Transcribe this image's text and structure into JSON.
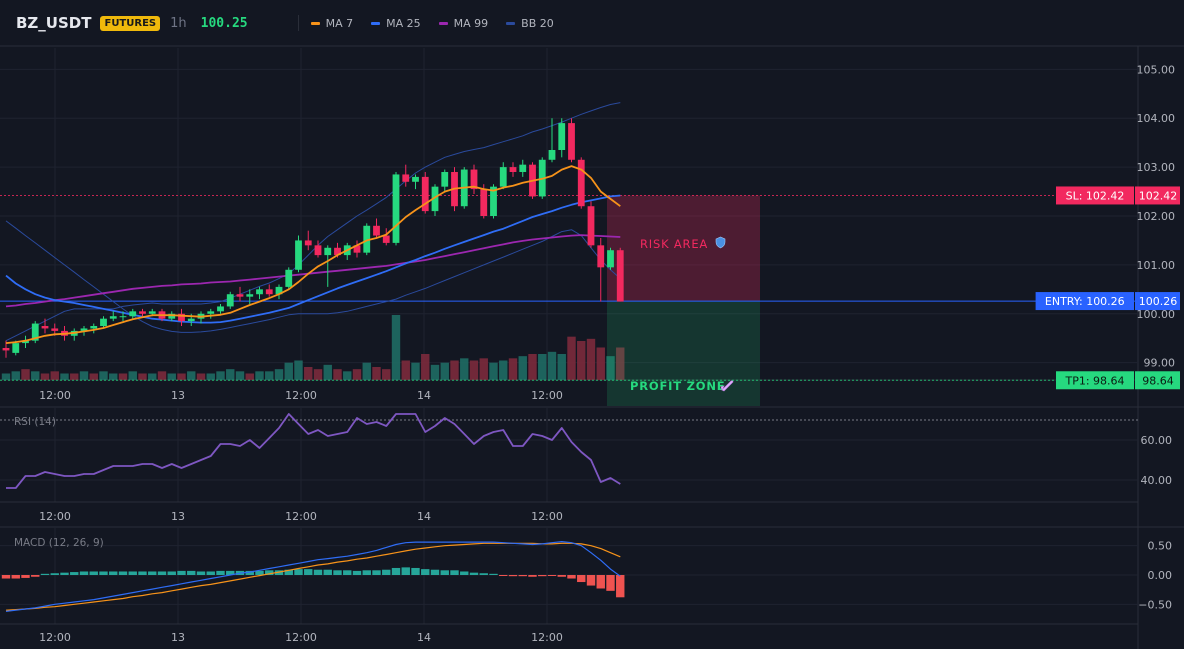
{
  "header": {
    "symbol": "BZ_USDT",
    "badge": "FUTURES",
    "interval": "1h",
    "last_price": "100.25",
    "legend": [
      {
        "label": "MA 7",
        "color": "#f7931a"
      },
      {
        "label": "MA 25",
        "color": "#2f6df6"
      },
      {
        "label": "MA 99",
        "color": "#9c27b0"
      },
      {
        "label": "BB 20",
        "color": "#2a4a9c"
      }
    ]
  },
  "chart_data": [
    {
      "type": "candlestick",
      "name": "price",
      "ylim": [
        98.4,
        105.6
      ],
      "yticks": [
        99,
        100,
        101,
        102,
        103,
        104,
        105
      ],
      "xtick_labels": [
        "12:00",
        "13",
        "12:00",
        "14",
        "12:00"
      ],
      "annotations": {
        "stop_loss": {
          "label": "SL: 102.42",
          "value": 102.42,
          "color": "#f2295f"
        },
        "entry": {
          "label": "ENTRY: 100.26",
          "value": 100.26,
          "color": "#2962ff"
        },
        "take_profit": {
          "label": "TP1: 98.64",
          "value": 98.64,
          "color": "#26d97f"
        },
        "risk_area_label": "RISK AREA",
        "profit_zone_label": "PROFIT ZONE"
      },
      "ohlc": [
        [
          99.3,
          99.45,
          99.1,
          99.25
        ],
        [
          99.2,
          99.45,
          99.15,
          99.4
        ],
        [
          99.4,
          99.55,
          99.3,
          99.45
        ],
        [
          99.45,
          99.85,
          99.4,
          99.8
        ],
        [
          99.75,
          99.9,
          99.6,
          99.7
        ],
        [
          99.7,
          99.8,
          99.55,
          99.65
        ],
        [
          99.65,
          99.75,
          99.45,
          99.55
        ],
        [
          99.55,
          99.7,
          99.45,
          99.65
        ],
        [
          99.65,
          99.75,
          99.55,
          99.7
        ],
        [
          99.7,
          99.8,
          99.6,
          99.75
        ],
        [
          99.75,
          99.95,
          99.7,
          99.9
        ],
        [
          99.9,
          100.05,
          99.85,
          99.95
        ],
        [
          99.95,
          100.05,
          99.85,
          99.95
        ],
        [
          99.95,
          100.1,
          99.9,
          100.05
        ],
        [
          100.05,
          100.1,
          99.95,
          100.0
        ],
        [
          100.0,
          100.1,
          99.95,
          100.05
        ],
        [
          100.05,
          100.1,
          99.85,
          99.9
        ],
        [
          99.9,
          100.05,
          99.85,
          100.0
        ],
        [
          100.0,
          100.1,
          99.75,
          99.85
        ],
        [
          99.85,
          100.0,
          99.75,
          99.9
        ],
        [
          99.9,
          100.05,
          99.8,
          100.0
        ],
        [
          100.0,
          100.1,
          99.9,
          100.05
        ],
        [
          100.05,
          100.2,
          100.0,
          100.15
        ],
        [
          100.15,
          100.45,
          100.1,
          100.4
        ],
        [
          100.4,
          100.55,
          100.25,
          100.35
        ],
        [
          100.35,
          100.5,
          100.2,
          100.4
        ],
        [
          100.4,
          100.55,
          100.3,
          100.5
        ],
        [
          100.5,
          100.6,
          100.35,
          100.4
        ],
        [
          100.4,
          100.6,
          100.3,
          100.55
        ],
        [
          100.55,
          100.95,
          100.5,
          100.9
        ],
        [
          100.9,
          101.6,
          100.85,
          101.5
        ],
        [
          101.5,
          101.7,
          101.3,
          101.4
        ],
        [
          101.4,
          101.5,
          101.15,
          101.2
        ],
        [
          101.2,
          101.4,
          100.55,
          101.35
        ],
        [
          101.35,
          101.45,
          101.15,
          101.2
        ],
        [
          101.2,
          101.45,
          101.1,
          101.4
        ],
        [
          101.4,
          101.5,
          101.15,
          101.25
        ],
        [
          101.25,
          101.85,
          101.2,
          101.8
        ],
        [
          101.8,
          101.95,
          101.55,
          101.6
        ],
        [
          101.6,
          101.75,
          101.4,
          101.45
        ],
        [
          101.45,
          102.9,
          101.4,
          102.85
        ],
        [
          102.85,
          103.05,
          102.6,
          102.7
        ],
        [
          102.7,
          102.85,
          102.55,
          102.8
        ],
        [
          102.8,
          102.9,
          102.05,
          102.1
        ],
        [
          102.1,
          102.65,
          102.0,
          102.6
        ],
        [
          102.6,
          102.95,
          102.5,
          102.9
        ],
        [
          102.9,
          103.0,
          102.1,
          102.2
        ],
        [
          102.2,
          103.0,
          102.15,
          102.95
        ],
        [
          102.95,
          103.05,
          102.45,
          102.55
        ],
        [
          102.55,
          102.65,
          101.95,
          102.0
        ],
        [
          102.0,
          102.65,
          101.95,
          102.6
        ],
        [
          102.6,
          103.1,
          102.55,
          103.0
        ],
        [
          103.0,
          103.1,
          102.8,
          102.9
        ],
        [
          102.9,
          103.15,
          102.8,
          103.05
        ],
        [
          103.05,
          103.1,
          102.35,
          102.4
        ],
        [
          102.4,
          103.2,
          102.35,
          103.15
        ],
        [
          103.15,
          104.0,
          103.1,
          103.35
        ],
        [
          103.35,
          104.0,
          103.2,
          103.9
        ],
        [
          103.9,
          104.0,
          103.1,
          103.15
        ],
        [
          103.15,
          103.2,
          102.15,
          102.2
        ],
        [
          102.2,
          102.3,
          101.35,
          101.4
        ],
        [
          101.4,
          101.55,
          100.25,
          100.95
        ],
        [
          100.95,
          101.35,
          100.9,
          101.3
        ],
        [
          101.3,
          101.35,
          100.25,
          100.25
        ]
      ],
      "ma7": [
        99.4,
        99.42,
        99.45,
        99.5,
        99.55,
        99.58,
        99.59,
        99.61,
        99.64,
        99.67,
        99.71,
        99.77,
        99.83,
        99.89,
        99.93,
        99.97,
        99.97,
        99.97,
        99.96,
        99.95,
        99.94,
        99.96,
        99.98,
        100.02,
        100.1,
        100.18,
        100.25,
        100.32,
        100.4,
        100.5,
        100.65,
        100.82,
        100.97,
        101.08,
        101.2,
        101.3,
        101.4,
        101.5,
        101.55,
        101.62,
        101.8,
        101.98,
        102.12,
        102.25,
        102.38,
        102.5,
        102.56,
        102.58,
        102.6,
        102.55,
        102.52,
        102.58,
        102.62,
        102.68,
        102.72,
        102.76,
        102.82,
        102.95,
        103.02,
        102.95,
        102.78,
        102.5,
        102.35,
        102.2
      ],
      "ma25": [
        100.78,
        100.62,
        100.5,
        100.4,
        100.33,
        100.28,
        100.25,
        100.22,
        100.18,
        100.14,
        100.1,
        100.06,
        100.02,
        99.98,
        99.94,
        99.9,
        99.88,
        99.86,
        99.84,
        99.83,
        99.82,
        99.82,
        99.83,
        99.86,
        99.9,
        99.94,
        99.98,
        100.02,
        100.07,
        100.12,
        100.2,
        100.28,
        100.36,
        100.44,
        100.52,
        100.59,
        100.66,
        100.73,
        100.8,
        100.87,
        100.95,
        101.03,
        101.1,
        101.18,
        101.25,
        101.33,
        101.4,
        101.47,
        101.54,
        101.61,
        101.68,
        101.74,
        101.82,
        101.9,
        101.98,
        102.04,
        102.1,
        102.17,
        102.23,
        102.28,
        102.32,
        102.36,
        102.4,
        102.42
      ],
      "ma99": [
        100.15,
        100.17,
        100.2,
        100.22,
        100.25,
        100.28,
        100.3,
        100.33,
        100.36,
        100.39,
        100.42,
        100.45,
        100.48,
        100.51,
        100.53,
        100.55,
        100.57,
        100.58,
        100.6,
        100.61,
        100.62,
        100.64,
        100.65,
        100.66,
        100.68,
        100.7,
        100.72,
        100.74,
        100.76,
        100.78,
        100.8,
        100.82,
        100.84,
        100.86,
        100.88,
        100.9,
        100.92,
        100.94,
        100.96,
        100.98,
        101.01,
        101.04,
        101.07,
        101.1,
        101.14,
        101.18,
        101.22,
        101.26,
        101.3,
        101.34,
        101.38,
        101.42,
        101.46,
        101.49,
        101.52,
        101.54,
        101.56,
        101.58,
        101.6,
        101.61,
        101.6,
        101.59,
        101.58,
        101.57
      ],
      "bb_upper": [
        99.45,
        99.55,
        99.65,
        99.75,
        99.85,
        99.95,
        100.05,
        100.1,
        100.1,
        100.1,
        100.1,
        100.1,
        100.15,
        100.18,
        100.2,
        100.22,
        100.2,
        100.2,
        100.2,
        100.2,
        100.2,
        100.22,
        100.25,
        100.32,
        100.4,
        100.48,
        100.56,
        100.63,
        100.72,
        100.82,
        101.0,
        101.2,
        101.4,
        101.58,
        101.72,
        101.86,
        102.0,
        102.12,
        102.25,
        102.38,
        102.55,
        102.72,
        102.88,
        103.0,
        103.1,
        103.2,
        103.26,
        103.32,
        103.36,
        103.4,
        103.46,
        103.52,
        103.58,
        103.64,
        103.72,
        103.78,
        103.85,
        103.92,
        104.0,
        104.08,
        104.15,
        104.22,
        104.28,
        104.32
      ],
      "bb_lower": [
        101.9,
        101.75,
        101.6,
        101.45,
        101.3,
        101.15,
        101.0,
        100.85,
        100.7,
        100.55,
        100.4,
        100.25,
        100.1,
        99.96,
        99.84,
        99.74,
        99.68,
        99.64,
        99.62,
        99.62,
        99.63,
        99.65,
        99.68,
        99.72,
        99.76,
        99.8,
        99.84,
        99.88,
        99.93,
        99.98,
        100.0,
        100.0,
        100.0,
        100.0,
        100.02,
        100.05,
        100.1,
        100.15,
        100.2,
        100.25,
        100.3,
        100.38,
        100.45,
        100.52,
        100.6,
        100.68,
        100.76,
        100.84,
        100.92,
        101.0,
        101.08,
        101.16,
        101.24,
        101.32,
        101.4,
        101.48,
        101.58,
        101.68,
        101.72,
        101.6,
        101.35,
        101.1,
        100.9,
        100.72
      ],
      "volume": [
        3,
        4,
        5,
        4,
        3,
        4,
        3,
        3,
        4,
        3,
        4,
        3,
        3,
        4,
        3,
        3,
        4,
        3,
        3,
        4,
        3,
        3,
        4,
        5,
        4,
        3,
        4,
        4,
        5,
        8,
        9,
        6,
        5,
        7,
        5,
        4,
        5,
        8,
        6,
        5,
        30,
        9,
        8,
        12,
        7,
        8,
        9,
        10,
        9,
        10,
        8,
        9,
        10,
        11,
        12,
        12,
        13,
        12,
        20,
        18,
        19,
        15,
        11,
        15
      ],
      "volume_up": [
        1,
        1,
        0,
        1,
        0,
        0,
        1,
        0,
        1,
        0,
        1,
        1,
        0,
        1,
        0,
        1,
        0,
        1,
        0,
        1,
        0,
        1,
        1,
        1,
        1,
        0,
        1,
        1,
        1,
        1,
        1,
        0,
        0,
        1,
        0,
        1,
        0,
        1,
        0,
        0,
        1,
        0,
        1,
        0,
        1,
        1,
        0,
        1,
        0,
        0,
        1,
        1,
        0,
        1,
        0,
        1,
        1,
        1,
        0,
        0,
        0,
        0,
        1,
        0
      ]
    },
    {
      "type": "line",
      "name": "RSI (14)",
      "title": "RSI (14)",
      "ylim": [
        30,
        74
      ],
      "yticks": [
        40,
        60
      ],
      "overbought": 70,
      "xtick_labels": [
        "12:00",
        "13",
        "12:00",
        "14",
        "12:00"
      ],
      "values": [
        36,
        36,
        42,
        42,
        44,
        43,
        42,
        42,
        43,
        43,
        45,
        47,
        47,
        47,
        48,
        48,
        46,
        48,
        46,
        48,
        50,
        52,
        58,
        58,
        57,
        60,
        56,
        61,
        66,
        73,
        68,
        63,
        65,
        62,
        63,
        64,
        71,
        68,
        69,
        67,
        73,
        73,
        73,
        64,
        67,
        71,
        68,
        63,
        58,
        62,
        64,
        65,
        57,
        57,
        63,
        62,
        60,
        66,
        59,
        54,
        50,
        39,
        41,
        38
      ]
    },
    {
      "type": "bar",
      "name": "MACD (12, 26, 9)",
      "title": "MACD (12, 26, 9)",
      "ylim": [
        -0.75,
        0.75
      ],
      "yticks": [
        0.5,
        0.0,
        -0.5
      ],
      "ytick_labels": [
        "0.50",
        "0.00",
        "−0.50"
      ],
      "xtick_labels": [
        "12:00",
        "13",
        "12:00",
        "14",
        "12:00"
      ],
      "histogram": [
        -0.06,
        -0.06,
        -0.05,
        -0.03,
        0.02,
        0.03,
        0.04,
        0.05,
        0.06,
        0.06,
        0.06,
        0.06,
        0.06,
        0.06,
        0.06,
        0.06,
        0.06,
        0.06,
        0.07,
        0.07,
        0.06,
        0.06,
        0.07,
        0.07,
        0.07,
        0.07,
        0.07,
        0.08,
        0.08,
        0.09,
        0.1,
        0.1,
        0.09,
        0.09,
        0.08,
        0.08,
        0.07,
        0.08,
        0.08,
        0.09,
        0.12,
        0.13,
        0.12,
        0.1,
        0.09,
        0.08,
        0.08,
        0.06,
        0.04,
        0.03,
        0.02,
        -0.01,
        -0.02,
        -0.02,
        -0.03,
        -0.02,
        -0.01,
        -0.03,
        -0.06,
        -0.12,
        -0.18,
        -0.23,
        -0.27,
        -0.38
      ],
      "macd": [
        -0.62,
        -0.6,
        -0.58,
        -0.56,
        -0.53,
        -0.5,
        -0.48,
        -0.46,
        -0.44,
        -0.42,
        -0.39,
        -0.36,
        -0.33,
        -0.3,
        -0.27,
        -0.24,
        -0.21,
        -0.18,
        -0.15,
        -0.12,
        -0.09,
        -0.06,
        -0.03,
        0.0,
        0.03,
        0.05,
        0.08,
        0.11,
        0.14,
        0.17,
        0.2,
        0.23,
        0.26,
        0.28,
        0.3,
        0.32,
        0.35,
        0.38,
        0.42,
        0.47,
        0.52,
        0.55,
        0.56,
        0.56,
        0.56,
        0.56,
        0.56,
        0.56,
        0.56,
        0.56,
        0.56,
        0.55,
        0.54,
        0.53,
        0.52,
        0.53,
        0.55,
        0.57,
        0.55,
        0.5,
        0.38,
        0.25,
        0.1,
        -0.02
      ],
      "signal": [
        -0.6,
        -0.59,
        -0.58,
        -0.57,
        -0.55,
        -0.54,
        -0.52,
        -0.5,
        -0.48,
        -0.46,
        -0.44,
        -0.42,
        -0.4,
        -0.37,
        -0.35,
        -0.32,
        -0.3,
        -0.27,
        -0.24,
        -0.21,
        -0.18,
        -0.16,
        -0.13,
        -0.1,
        -0.07,
        -0.04,
        -0.01,
        0.02,
        0.05,
        0.08,
        0.11,
        0.14,
        0.17,
        0.19,
        0.22,
        0.24,
        0.27,
        0.29,
        0.32,
        0.35,
        0.38,
        0.41,
        0.44,
        0.46,
        0.48,
        0.5,
        0.51,
        0.52,
        0.53,
        0.54,
        0.54,
        0.54,
        0.54,
        0.54,
        0.54,
        0.53,
        0.53,
        0.54,
        0.54,
        0.53,
        0.5,
        0.45,
        0.38,
        0.31
      ]
    }
  ]
}
